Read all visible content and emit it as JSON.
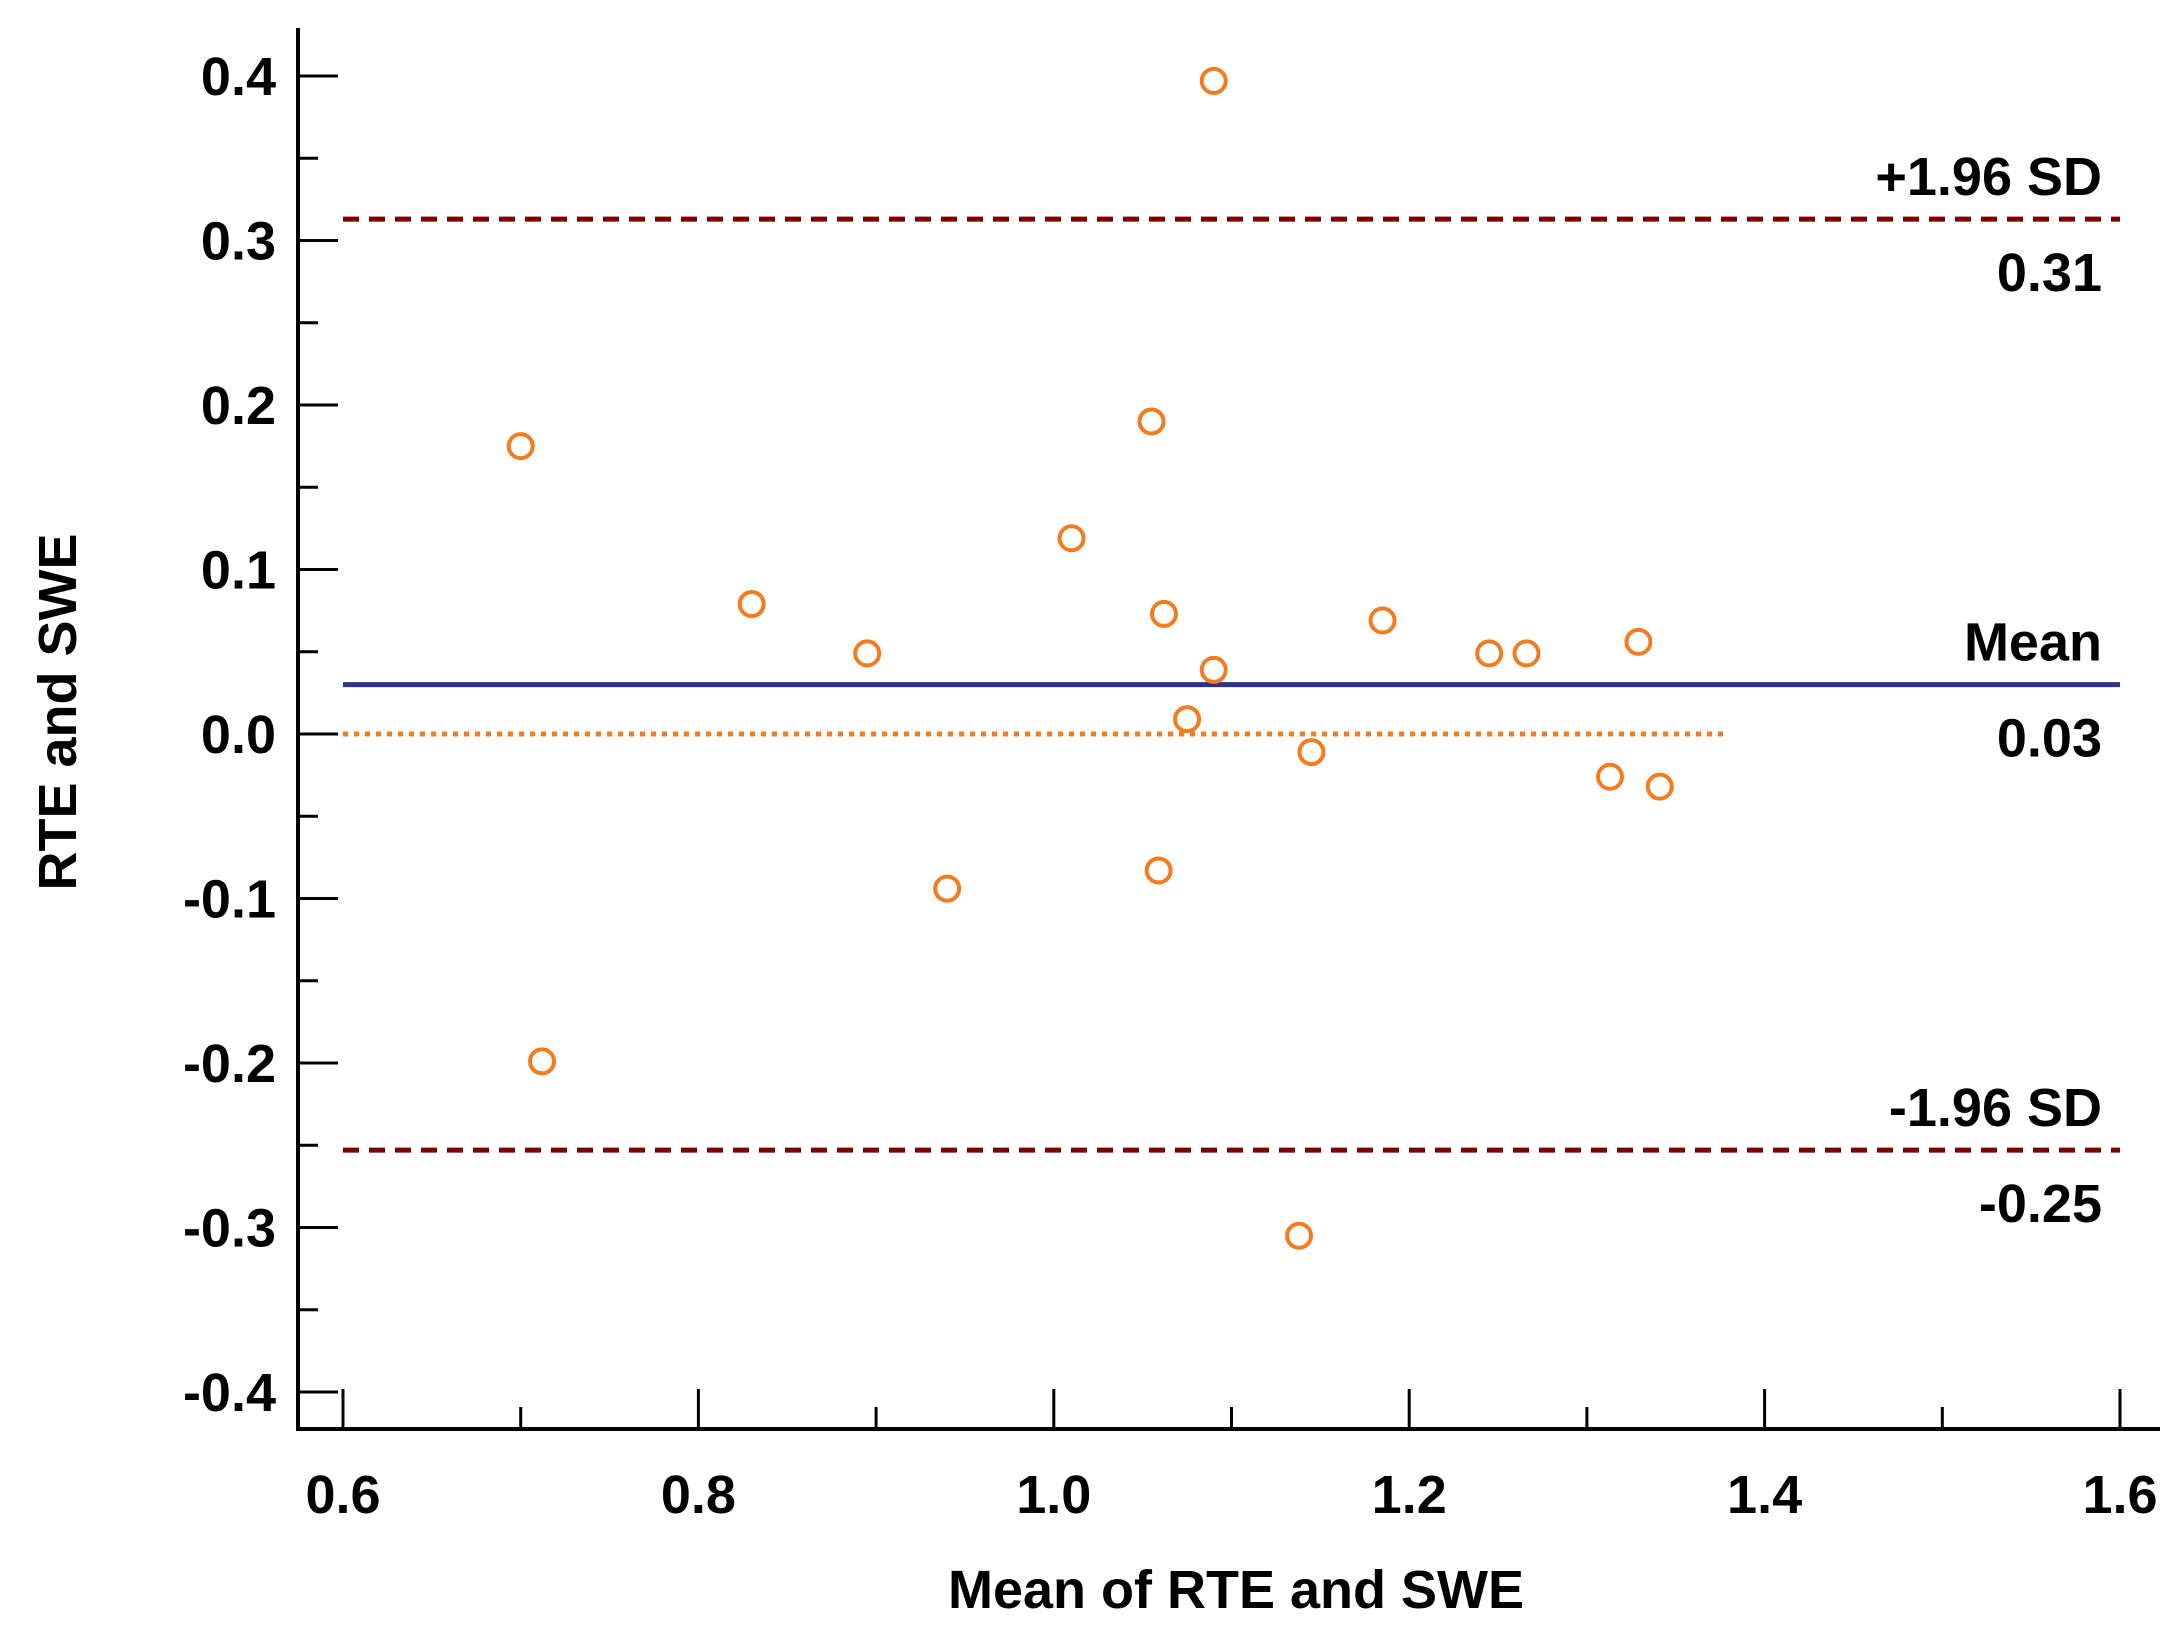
{
  "chart_data": {
    "type": "scatter",
    "title": "",
    "xlabel": "Mean of RTE and SWE",
    "ylabel": "RTE and SWE",
    "xlim": [
      0.6,
      1.6
    ],
    "ylim": [
      -0.4,
      0.4
    ],
    "x_ticks": [
      0.6,
      0.8,
      1.0,
      1.2,
      1.4,
      1.6
    ],
    "x_tick_labels": [
      "0.6",
      "0.8",
      "1.0",
      "1.2",
      "1.4",
      "1.6"
    ],
    "y_ticks": [
      0.4,
      0.3,
      0.2,
      0.1,
      0.0,
      -0.1,
      -0.2,
      -0.3,
      -0.4
    ],
    "y_tick_labels": [
      "0.4",
      "0.3",
      "0.2",
      "0.1",
      "0.0",
      "-0.1",
      "-0.2",
      "-0.3",
      "-0.4"
    ],
    "grid": false,
    "points": {
      "x": [
        1.09,
        0.7,
        1.055,
        1.01,
        0.83,
        1.062,
        0.895,
        1.185,
        1.245,
        1.266,
        1.329,
        1.09,
        1.075,
        1.145,
        1.313,
        1.341,
        0.94,
        1.059,
        0.712,
        1.138
      ],
      "y": [
        0.397,
        0.175,
        0.19,
        0.119,
        0.079,
        0.073,
        0.049,
        0.069,
        0.049,
        0.049,
        0.056,
        0.039,
        0.009,
        -0.011,
        -0.026,
        -0.032,
        -0.094,
        -0.083,
        -0.199,
        -0.305
      ],
      "marker": "open-circle",
      "color": "#f47c20"
    },
    "reference_lines": [
      {
        "name": "upper-limit",
        "y": 0.313,
        "style": "dashed",
        "color": "#7b0000",
        "label": "+1.96 SD",
        "value_label": "0.31"
      },
      {
        "name": "mean",
        "y": 0.03,
        "style": "solid",
        "color": "#2e3192",
        "label": "Mean",
        "value_label": "0.03"
      },
      {
        "name": "lower-limit",
        "y": -0.253,
        "style": "dashed",
        "color": "#7b0000",
        "label": "-1.96 SD",
        "value_label": "-0.25"
      },
      {
        "name": "zero",
        "y": 0.0,
        "x_end": 1.38,
        "style": "dotted",
        "color": "#f47c20"
      }
    ]
  }
}
